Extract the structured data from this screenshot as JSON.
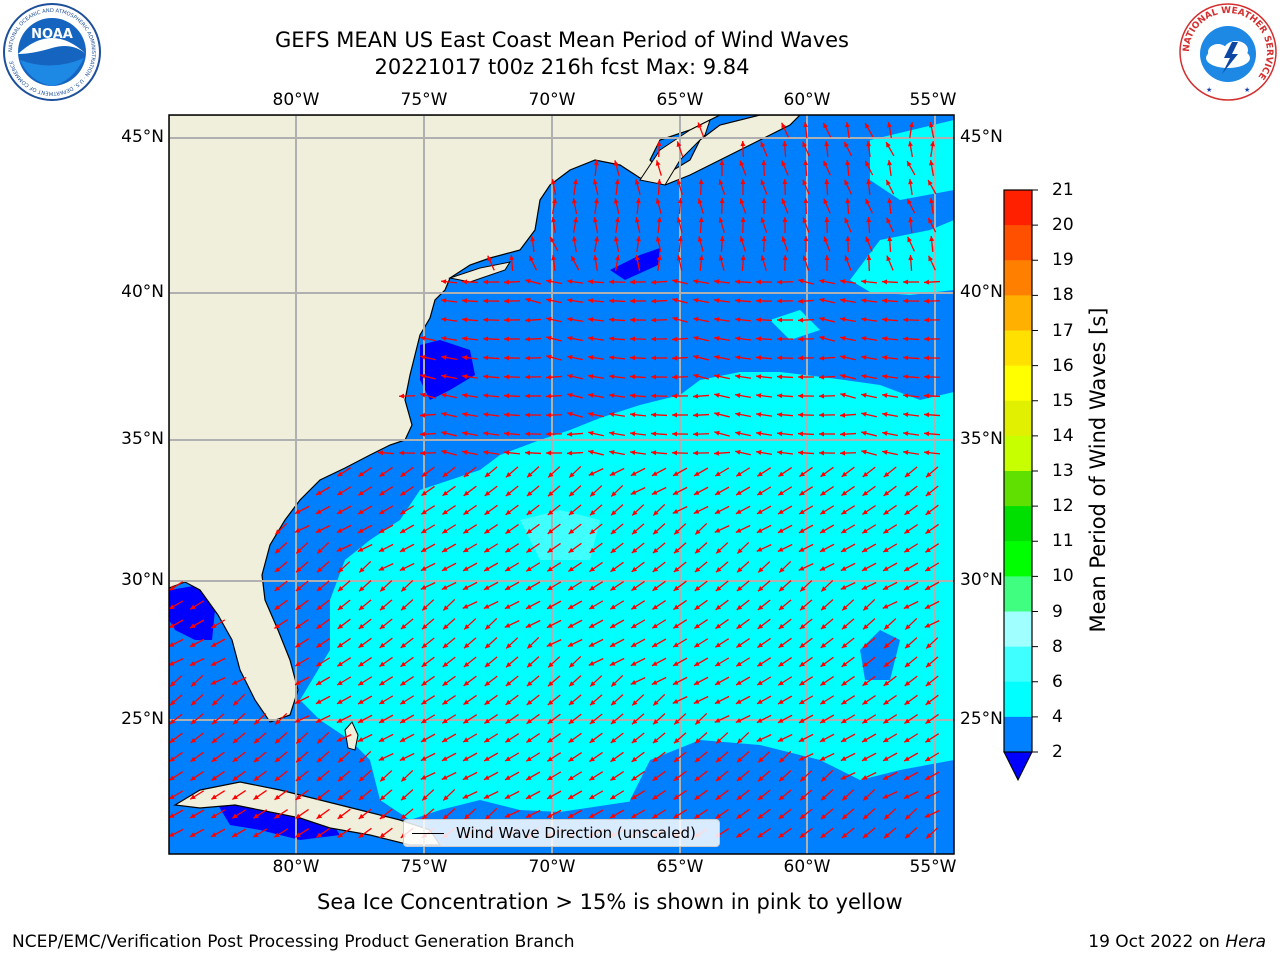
{
  "header": {
    "title_line1": "GEFS MEAN US East Coast Mean Period of Wind Waves",
    "title_line2": "20221017 t00z 216h fcst   Max: 9.84"
  },
  "logos": {
    "noaa_text": "NOAA",
    "noaa_ring_text": "NATIONAL OCEANIC AND ATMOSPHERIC ADMINISTRATION · U.S. DEPARTMENT OF COMMERCE",
    "nws_ring_text": "NATIONAL WEATHER SERVICE"
  },
  "map": {
    "lon_ticks": [
      "80°W",
      "75°W",
      "70°W",
      "65°W",
      "60°W",
      "55°W"
    ],
    "lat_ticks": [
      "45°N",
      "40°N",
      "35°N",
      "30°N",
      "25°N"
    ],
    "lon_range": [
      -85,
      -54.4
    ],
    "lat_range": [
      20.4,
      46
    ],
    "arrow_color": "#ff0000",
    "land_color": "#efefdb",
    "grid_color": "#b0b0b0",
    "legend_label": "Wind Wave Direction (unscaled)"
  },
  "colorbar": {
    "label": "Mean Period of Wind Waves [s]",
    "ticks": [
      "21",
      "20",
      "19",
      "18",
      "17",
      "16",
      "15",
      "14",
      "13",
      "12",
      "11",
      "10",
      "9",
      "8",
      "6",
      "4",
      "2"
    ],
    "colors": [
      "#0000ff",
      "#0080ff",
      "#00ffff",
      "#40ffff",
      "#a0ffff",
      "#40ff80",
      "#00ff00",
      "#00e000",
      "#60e000",
      "#c8ff00",
      "#e0f000",
      "#ffff00",
      "#ffe000",
      "#ffb000",
      "#ff8000",
      "#ff5000",
      "#ff2000",
      "#ff0000"
    ]
  },
  "footer": {
    "sea_ice_note": "Sea Ice Concentration > 15% is shown in pink to yellow",
    "producer": "NCEP/EMC/Verification Post Processing Product Generation Branch",
    "date": "19 Oct 2022 on",
    "host": "Hera"
  }
}
